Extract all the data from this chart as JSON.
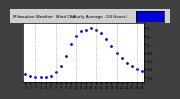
{
  "title": "Milwaukee Weather  Wind Chill   Hourly Average  (24 Hours)",
  "hours": [
    1,
    2,
    3,
    4,
    5,
    6,
    7,
    8,
    9,
    10,
    11,
    12,
    13,
    14,
    15,
    16,
    17,
    18,
    19,
    20,
    21,
    22,
    23,
    24
  ],
  "wind_chill": [
    -23,
    -24,
    -25,
    -25,
    -25,
    -24,
    -22,
    -18,
    -12,
    -5,
    0,
    3,
    4,
    5,
    4,
    2,
    -2,
    -6,
    -10,
    -13,
    -16,
    -18,
    -20,
    -21
  ],
  "line_color": "#0000ff",
  "bg_color": "#ffffff",
  "outer_bg": "#404040",
  "ylim": [
    -28,
    8
  ],
  "yticks": [
    -25,
    -20,
    -15,
    -10,
    -5,
    0,
    5
  ],
  "ytick_labels": [
    "-25",
    "-20",
    "-15",
    "-10",
    "-5",
    "0",
    "5"
  ],
  "grid_hours": [
    3,
    7,
    11,
    15,
    19,
    23
  ],
  "legend_color": "#0000dd",
  "title_color": "#000000",
  "title_bg": "#d0d0d0"
}
